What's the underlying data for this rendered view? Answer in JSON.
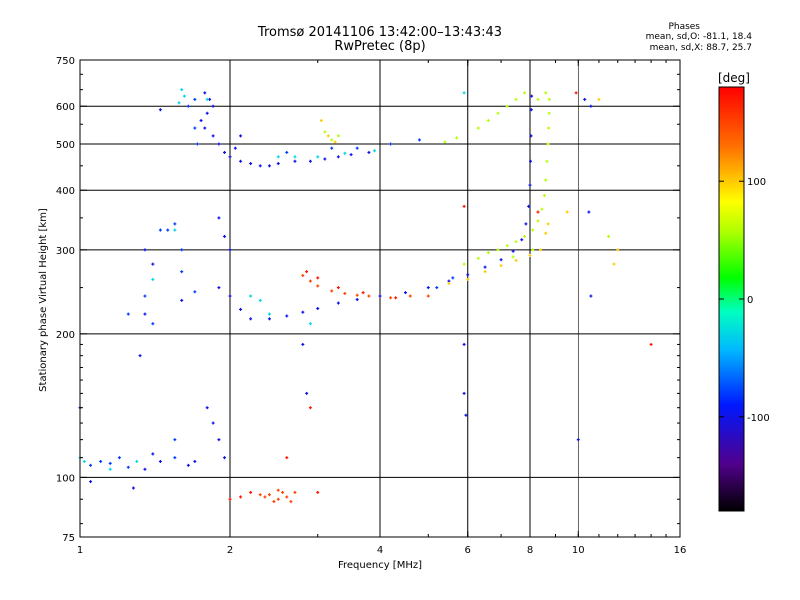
{
  "header": {
    "title": "Tromsø 20141106 13:42:00–13:43:43",
    "subtitle": "RwPretec (8p)",
    "stats_title": "Phases",
    "stats_o": "mean, sd,O: -81.1, 18.4",
    "stats_x": "mean, sd,X: 88.7, 25.7"
  },
  "colorbar": {
    "label": "[deg]",
    "range": [
      -180,
      180
    ],
    "ticks": [
      {
        "value": 100,
        "label": "100"
      },
      {
        "value": 0,
        "label": "0"
      },
      {
        "value": -100,
        "label": "-100"
      }
    ]
  },
  "chart_data": {
    "type": "scatter",
    "title": "Tromsø 20141106 13:42:00–13:43:43",
    "subtitle": "RwPretec (8p)",
    "xlabel": "Frequency [MHz]",
    "ylabel": "Stationary phase Virtual Height [km]",
    "x_scale": "log",
    "y_scale": "log",
    "xlim": [
      1,
      16
    ],
    "ylim": [
      75,
      750
    ],
    "grid": true,
    "color_dimension": "phase [deg]",
    "x_ticks": [
      {
        "value": 1,
        "label": "1"
      },
      {
        "value": 2,
        "label": "2"
      },
      {
        "value": 4,
        "label": "4"
      },
      {
        "value": 6,
        "label": "6"
      },
      {
        "value": 8,
        "label": "8"
      },
      {
        "value": 10,
        "label": "10"
      },
      {
        "value": 16,
        "label": "16"
      }
    ],
    "y_ticks": [
      {
        "value": 75,
        "label": "75"
      },
      {
        "value": 100,
        "label": "100"
      },
      {
        "value": 200,
        "label": "200"
      },
      {
        "value": 300,
        "label": "300"
      },
      {
        "value": 400,
        "label": "400"
      },
      {
        "value": 500,
        "label": "500"
      },
      {
        "value": 600,
        "label": "600"
      },
      {
        "value": 750,
        "label": "750"
      }
    ],
    "series": [
      {
        "phase": -100,
        "points": [
          [
            1.78,
            640
          ],
          [
            1.82,
            620
          ],
          [
            1.85,
            600
          ],
          [
            1.8,
            580
          ],
          [
            1.75,
            560
          ],
          [
            1.78,
            540
          ],
          [
            1.85,
            520
          ],
          [
            1.9,
            500
          ],
          [
            1.95,
            480
          ],
          [
            2.0,
            470
          ],
          [
            2.1,
            460
          ],
          [
            2.2,
            455
          ],
          [
            2.3,
            450
          ],
          [
            2.4,
            450
          ],
          [
            2.5,
            455
          ],
          [
            2.7,
            460
          ],
          [
            2.9,
            460
          ],
          [
            3.1,
            465
          ],
          [
            3.3,
            470
          ],
          [
            3.5,
            475
          ],
          [
            3.8,
            480
          ],
          [
            1.9,
            350
          ],
          [
            1.95,
            320
          ],
          [
            2.0,
            300
          ],
          [
            1.9,
            250
          ],
          [
            2.0,
            240
          ],
          [
            2.1,
            225
          ],
          [
            2.2,
            215
          ],
          [
            2.4,
            215
          ],
          [
            2.6,
            218
          ],
          [
            2.8,
            222
          ],
          [
            3.0,
            226
          ],
          [
            3.3,
            232
          ],
          [
            3.6,
            236
          ],
          [
            4.0,
            240
          ],
          [
            4.5,
            244
          ],
          [
            5.0,
            250
          ],
          [
            5.5,
            258
          ],
          [
            6.0,
            266
          ],
          [
            6.5,
            276
          ],
          [
            7.0,
            286
          ],
          [
            7.4,
            298
          ],
          [
            7.7,
            315
          ],
          [
            7.85,
            340
          ],
          [
            7.95,
            370
          ],
          [
            8.0,
            410
          ],
          [
            8.02,
            460
          ],
          [
            8.04,
            520
          ],
          [
            8.05,
            590
          ],
          [
            8.06,
            630
          ],
          [
            1.35,
            300
          ],
          [
            1.4,
            280
          ],
          [
            1.35,
            220
          ],
          [
            1.32,
            180
          ],
          [
            1.6,
            235
          ],
          [
            1.8,
            140
          ],
          [
            1.85,
            130
          ],
          [
            1.9,
            120
          ],
          [
            1.95,
            110
          ],
          [
            1.7,
            108
          ],
          [
            1.65,
            106
          ],
          [
            1.45,
            108
          ],
          [
            1.35,
            104
          ],
          [
            1.4,
            112
          ],
          [
            1.0,
            140
          ],
          [
            1.05,
            98
          ],
          [
            1.28,
            95
          ],
          [
            2.8,
            190
          ],
          [
            2.85,
            150
          ],
          [
            5.9,
            190
          ],
          [
            5.9,
            150
          ],
          [
            5.95,
            135
          ],
          [
            10.5,
            360
          ],
          [
            10.6,
            240
          ],
          [
            10.3,
            620
          ],
          [
            10.6,
            600
          ],
          [
            10.0,
            120
          ],
          [
            1.45,
            590
          ],
          [
            2.1,
            520
          ],
          [
            2.05,
            490
          ]
        ]
      },
      {
        "phase": -80,
        "points": [
          [
            1.65,
            600
          ],
          [
            1.7,
            620
          ],
          [
            1.7,
            540
          ],
          [
            1.72,
            500
          ],
          [
            2.6,
            480
          ],
          [
            3.2,
            490
          ],
          [
            3.6,
            490
          ],
          [
            4.2,
            500
          ],
          [
            4.8,
            510
          ],
          [
            1.55,
            340
          ],
          [
            1.5,
            330
          ],
          [
            1.6,
            300
          ],
          [
            1.7,
            245
          ],
          [
            1.6,
            270
          ],
          [
            1.55,
            110
          ],
          [
            1.55,
            120
          ],
          [
            1.15,
            107
          ],
          [
            1.2,
            110
          ],
          [
            1.25,
            105
          ],
          [
            1.1,
            108
          ],
          [
            1.05,
            106
          ],
          [
            1.45,
            330
          ],
          [
            1.25,
            220
          ],
          [
            1.35,
            240
          ],
          [
            1.4,
            210
          ],
          [
            5.2,
            250
          ],
          [
            5.6,
            262
          ]
        ]
      },
      {
        "phase": -30,
        "points": [
          [
            1.6,
            650
          ],
          [
            1.62,
            630
          ],
          [
            1.58,
            610
          ],
          [
            2.4,
            220
          ],
          [
            2.3,
            235
          ],
          [
            2.2,
            240
          ],
          [
            2.5,
            470
          ],
          [
            2.7,
            470
          ],
          [
            3.0,
            470
          ],
          [
            3.4,
            478
          ],
          [
            3.9,
            484
          ],
          [
            1.0,
            110
          ],
          [
            1.02,
            108
          ],
          [
            1.3,
            108
          ],
          [
            1.15,
            104
          ],
          [
            1.55,
            330
          ],
          [
            1.4,
            260
          ],
          [
            5.9,
            640
          ],
          [
            2.9,
            210
          ],
          [
            1.8,
            620
          ]
        ]
      },
      {
        "phase": 60,
        "points": [
          [
            5.4,
            505
          ],
          [
            5.7,
            515
          ],
          [
            6.3,
            540
          ],
          [
            6.6,
            560
          ],
          [
            6.9,
            580
          ],
          [
            7.2,
            600
          ],
          [
            7.5,
            620
          ],
          [
            7.8,
            640
          ],
          [
            5.9,
            280
          ],
          [
            6.3,
            288
          ],
          [
            6.6,
            296
          ],
          [
            6.9,
            300
          ],
          [
            7.2,
            306
          ],
          [
            7.5,
            312
          ],
          [
            7.8,
            320
          ],
          [
            8.1,
            330
          ],
          [
            8.3,
            345
          ],
          [
            8.45,
            365
          ],
          [
            8.55,
            390
          ],
          [
            8.6,
            420
          ],
          [
            8.65,
            460
          ],
          [
            8.7,
            500
          ],
          [
            8.72,
            540
          ],
          [
            8.74,
            580
          ],
          [
            8.75,
            620
          ],
          [
            8.1,
            300
          ],
          [
            7.4,
            290
          ],
          [
            11.5,
            320
          ],
          [
            3.2,
            510
          ],
          [
            3.3,
            520
          ],
          [
            3.1,
            530
          ],
          [
            8.6,
            640
          ],
          [
            8.3,
            620
          ]
        ]
      },
      {
        "phase": 100,
        "points": [
          [
            3.15,
            520
          ],
          [
            3.25,
            505
          ],
          [
            3.05,
            560
          ],
          [
            5.5,
            255
          ],
          [
            6.0,
            260
          ],
          [
            6.5,
            270
          ],
          [
            7.0,
            278
          ],
          [
            7.5,
            285
          ],
          [
            8.0,
            292
          ],
          [
            8.4,
            300
          ],
          [
            8.6,
            325
          ],
          [
            8.7,
            340
          ],
          [
            11.0,
            620
          ],
          [
            9.5,
            360
          ],
          [
            11.8,
            280
          ],
          [
            12.0,
            300
          ]
        ]
      },
      {
        "phase": 150,
        "points": [
          [
            2.8,
            265
          ],
          [
            2.9,
            258
          ],
          [
            3.0,
            252
          ],
          [
            3.2,
            246
          ],
          [
            3.4,
            243
          ],
          [
            3.6,
            241
          ],
          [
            3.8,
            240
          ],
          [
            4.2,
            238
          ],
          [
            4.6,
            240
          ],
          [
            5.0,
            240
          ],
          [
            2.4,
            92
          ],
          [
            2.5,
            90
          ],
          [
            2.6,
            91
          ],
          [
            2.45,
            89
          ],
          [
            2.55,
            93
          ],
          [
            2.35,
            91
          ],
          [
            2.7,
            93
          ],
          [
            2.3,
            92
          ],
          [
            2.5,
            94
          ],
          [
            2.65,
            89
          ]
        ]
      },
      {
        "phase": 170,
        "points": [
          [
            2.85,
            270
          ],
          [
            3.0,
            262
          ],
          [
            3.3,
            250
          ],
          [
            3.7,
            244
          ],
          [
            4.3,
            238
          ],
          [
            5.9,
            370
          ],
          [
            8.3,
            360
          ],
          [
            9.9,
            640
          ],
          [
            14.0,
            190
          ],
          [
            2.9,
            140
          ],
          [
            2.0,
            90
          ],
          [
            2.1,
            91
          ],
          [
            2.2,
            93
          ],
          [
            2.6,
            110
          ],
          [
            3.0,
            93
          ]
        ]
      }
    ]
  }
}
